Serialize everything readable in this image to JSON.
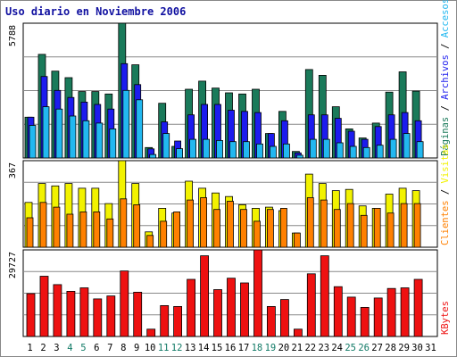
{
  "title": "Uso diario en Noviembre 2006",
  "colors": {
    "visitas": "#f2f200",
    "clientes": "#ff8000",
    "paginas": "#1a7a5a",
    "archivos": "#1c1cee",
    "accesos": "#22b8f0",
    "kbytes": "#ee1111",
    "weekend_label": "#117a66",
    "weekday_label": "#1010a0",
    "frame": "#000000",
    "gridline": "#888888"
  },
  "chart_data": [
    {
      "type": "bar",
      "panel": "hits",
      "ymax_label": "5788",
      "ylim": [
        0,
        5788
      ],
      "grid": true,
      "side_labels": [
        "Páginas",
        "Archivos",
        "Accesos"
      ],
      "side_separator": " / ",
      "series": [
        {
          "name": "Páginas",
          "color_key": "paginas",
          "values": [
            1750,
            4450,
            3730,
            3450,
            2850,
            2850,
            2750,
            5788,
            4000,
            450,
            2350,
            500,
            2950,
            3300,
            3000,
            2800,
            2750,
            2950,
            1050,
            2000,
            280,
            3800,
            3550,
            2200,
            1250,
            860,
            1500,
            2830,
            3700,
            2870
          ]
        },
        {
          "name": "Archivos",
          "color_key": "archivos",
          "values": [
            1750,
            3500,
            2900,
            2600,
            2400,
            2300,
            2100,
            4050,
            3150,
            390,
            1550,
            730,
            1850,
            2300,
            2300,
            2050,
            2000,
            1950,
            1050,
            1600,
            220,
            1850,
            1850,
            1700,
            1150,
            800,
            1350,
            1850,
            1950,
            1600
          ]
        },
        {
          "name": "Accesos",
          "color_key": "accesos",
          "values": [
            1400,
            2200,
            2100,
            1800,
            1600,
            1500,
            1250,
            2900,
            2500,
            150,
            1050,
            400,
            800,
            800,
            750,
            700,
            700,
            600,
            500,
            600,
            120,
            800,
            800,
            650,
            500,
            450,
            550,
            800,
            1050,
            700
          ]
        }
      ]
    },
    {
      "type": "bar",
      "panel": "visits",
      "ymax_label": "367",
      "ylim": [
        0,
        367
      ],
      "grid": true,
      "side_labels": [
        "Clientes",
        "Visitas"
      ],
      "side_separator": " / ",
      "series": [
        {
          "name": "Visitas",
          "color_key": "visitas",
          "values": [
            190,
            270,
            260,
            270,
            250,
            250,
            185,
            367,
            270,
            65,
            165,
            145,
            280,
            250,
            230,
            215,
            180,
            165,
            170,
            155,
            60,
            310,
            270,
            240,
            245,
            175,
            165,
            225,
            250,
            240
          ]
        },
        {
          "name": "Clientes",
          "color_key": "clientes",
          "values": [
            125,
            190,
            170,
            140,
            150,
            150,
            120,
            205,
            180,
            50,
            110,
            150,
            200,
            210,
            160,
            195,
            160,
            110,
            160,
            165,
            60,
            210,
            200,
            160,
            185,
            135,
            165,
            145,
            185,
            185
          ]
        }
      ]
    },
    {
      "type": "bar",
      "panel": "kbytes",
      "ymax_label": "29727",
      "ylim": [
        0,
        29727
      ],
      "grid": true,
      "side_labels": [
        "KBytes"
      ],
      "side_separator": " / ",
      "series": [
        {
          "name": "KBytes",
          "color_key": "kbytes",
          "values": [
            14700,
            20700,
            17800,
            15500,
            16700,
            12900,
            13900,
            22500,
            15200,
            2500,
            10600,
            10300,
            19600,
            27700,
            16100,
            20000,
            18400,
            29727,
            10300,
            12700,
            2500,
            21500,
            27700,
            17100,
            13500,
            10000,
            13200,
            16500,
            16700,
            19600
          ]
        }
      ]
    }
  ],
  "x_axis": {
    "days": [
      "1",
      "2",
      "3",
      "4",
      "5",
      "6",
      "7",
      "8",
      "9",
      "10",
      "11",
      "12",
      "13",
      "14",
      "15",
      "16",
      "17",
      "18",
      "19",
      "20",
      "21",
      "22",
      "23",
      "24",
      "25",
      "26",
      "27",
      "28",
      "29",
      "30",
      "31"
    ],
    "weekend_days": [
      "4",
      "5",
      "11",
      "12",
      "18",
      "19",
      "25",
      "26"
    ]
  }
}
